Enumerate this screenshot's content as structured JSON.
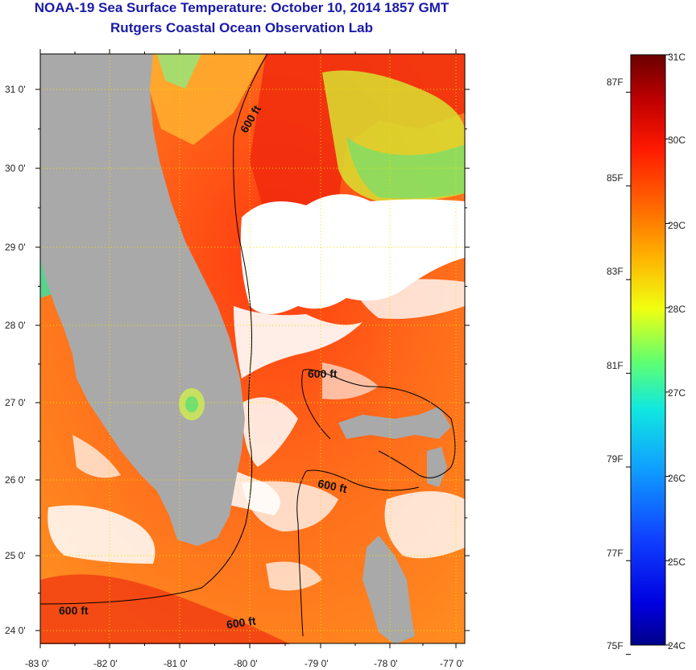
{
  "header": {
    "title": "NOAA-19 Sea Surface Temperature:  October 10, 2014 1857 GMT",
    "subtitle": "Rutgers Coastal Ocean Observation Lab"
  },
  "map": {
    "lat_ticks": [
      "31 0'",
      "30 0'",
      "29 0'",
      "28 0'",
      "27 0'",
      "26 0'",
      "25 0'",
      "24 0'"
    ],
    "lon_ticks": [
      "-83 0'",
      "-82 0'",
      "-81 0'",
      "-80 0'",
      "-79 0'",
      "-78 0'",
      "-77 0'"
    ],
    "contour_labels": [
      "600 ft",
      "600 ft",
      "600 ft",
      "600 ft",
      "600 ft"
    ],
    "colors": {
      "land": "#a9a9a9",
      "cloud": "#ffffff",
      "frame": "#000000",
      "grid": "#f0e000"
    }
  },
  "colorbar": {
    "celsius_labels": [
      "31C",
      "30C",
      "29C",
      "28C",
      "27C",
      "26C",
      "25C",
      "24C"
    ],
    "fahrenheit_labels": [
      "87F",
      "85F",
      "83F",
      "81F",
      "79F",
      "77F",
      "75F"
    ],
    "min_c": 24,
    "max_c": 31
  }
}
